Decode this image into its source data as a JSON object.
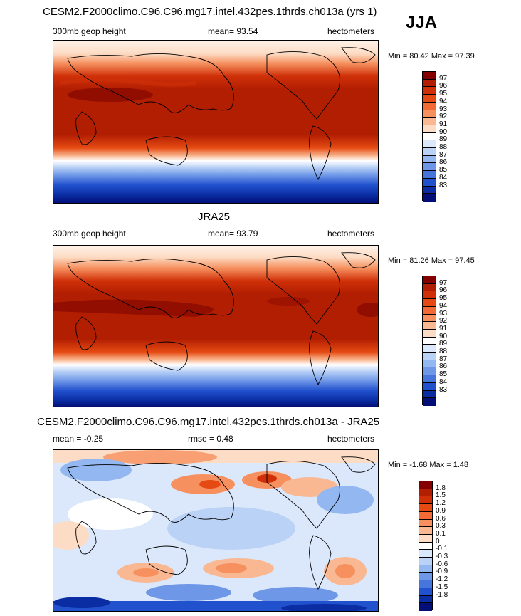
{
  "season": "JJA",
  "panels": [
    {
      "id": "model",
      "title": "CESM2.F2000climo.C96.C96.mg17.intel.432pes.1thrds.ch013a (yrs 1)",
      "left_label": "300mb geop height",
      "center_label": "mean=  93.54",
      "right_label": "hectometers",
      "minmax": "Min =  80.42 Max =  97.39",
      "colorbar": {
        "labels": [
          "97",
          "96",
          "95",
          "94",
          "93",
          "92",
          "91",
          "90",
          "89",
          "88",
          "87",
          "86",
          "85",
          "84",
          "83"
        ],
        "colors": [
          "#840000",
          "#b21e02",
          "#cf3008",
          "#e54a12",
          "#f26a36",
          "#f6915f",
          "#f9b892",
          "#fcdcc4",
          "#ffffff",
          "#dbe8fb",
          "#bad2f6",
          "#93b7f0",
          "#6e97e7",
          "#4675dc",
          "#2251ce",
          "#0a2da4",
          "#030f77"
        ]
      },
      "description": "Model 300mb geopotential height"
    },
    {
      "id": "obs",
      "title": "JRA25",
      "left_label": "300mb geop height",
      "center_label": "mean=  93.79",
      "right_label": "hectometers",
      "minmax": "Min =  81.26 Max =  97.45",
      "colorbar": {
        "labels": [
          "97",
          "96",
          "95",
          "94",
          "93",
          "92",
          "91",
          "90",
          "89",
          "88",
          "87",
          "86",
          "85",
          "84",
          "83"
        ],
        "colors": [
          "#840000",
          "#b21e02",
          "#cf3008",
          "#e54a12",
          "#f26a36",
          "#f6915f",
          "#f9b892",
          "#fcdcc4",
          "#ffffff",
          "#dbe8fb",
          "#bad2f6",
          "#93b7f0",
          "#6e97e7",
          "#4675dc",
          "#2251ce",
          "#0a2da4",
          "#030f77"
        ]
      },
      "description": "Observed 300mb geopotential height"
    },
    {
      "id": "diff",
      "title": "CESM2.F2000climo.C96.C96.mg17.intel.432pes.1thrds.ch013a - JRA25",
      "left_label": "mean =  -0.25",
      "center_label": "rmse =   0.48",
      "right_label": "hectometers",
      "minmax": "Min =  -1.68 Max =   1.48",
      "colorbar": {
        "labels": [
          "1.8",
          "1.5",
          "1.2",
          "0.9",
          "0.6",
          "0.3",
          "0.1",
          "0",
          "-0.1",
          "-0.3",
          "-0.6",
          "-0.9",
          "-1.2",
          "-1.5",
          "-1.8"
        ],
        "colors": [
          "#840000",
          "#b21e02",
          "#cf3008",
          "#e54a12",
          "#f26a36",
          "#f6915f",
          "#f9b892",
          "#fcdcc4",
          "#ffffff",
          "#dbe8fb",
          "#bad2f6",
          "#93b7f0",
          "#6e97e7",
          "#4675dc",
          "#2251ce",
          "#0a2da4",
          "#030f77"
        ]
      },
      "description": "Model minus observation difference"
    }
  ]
}
